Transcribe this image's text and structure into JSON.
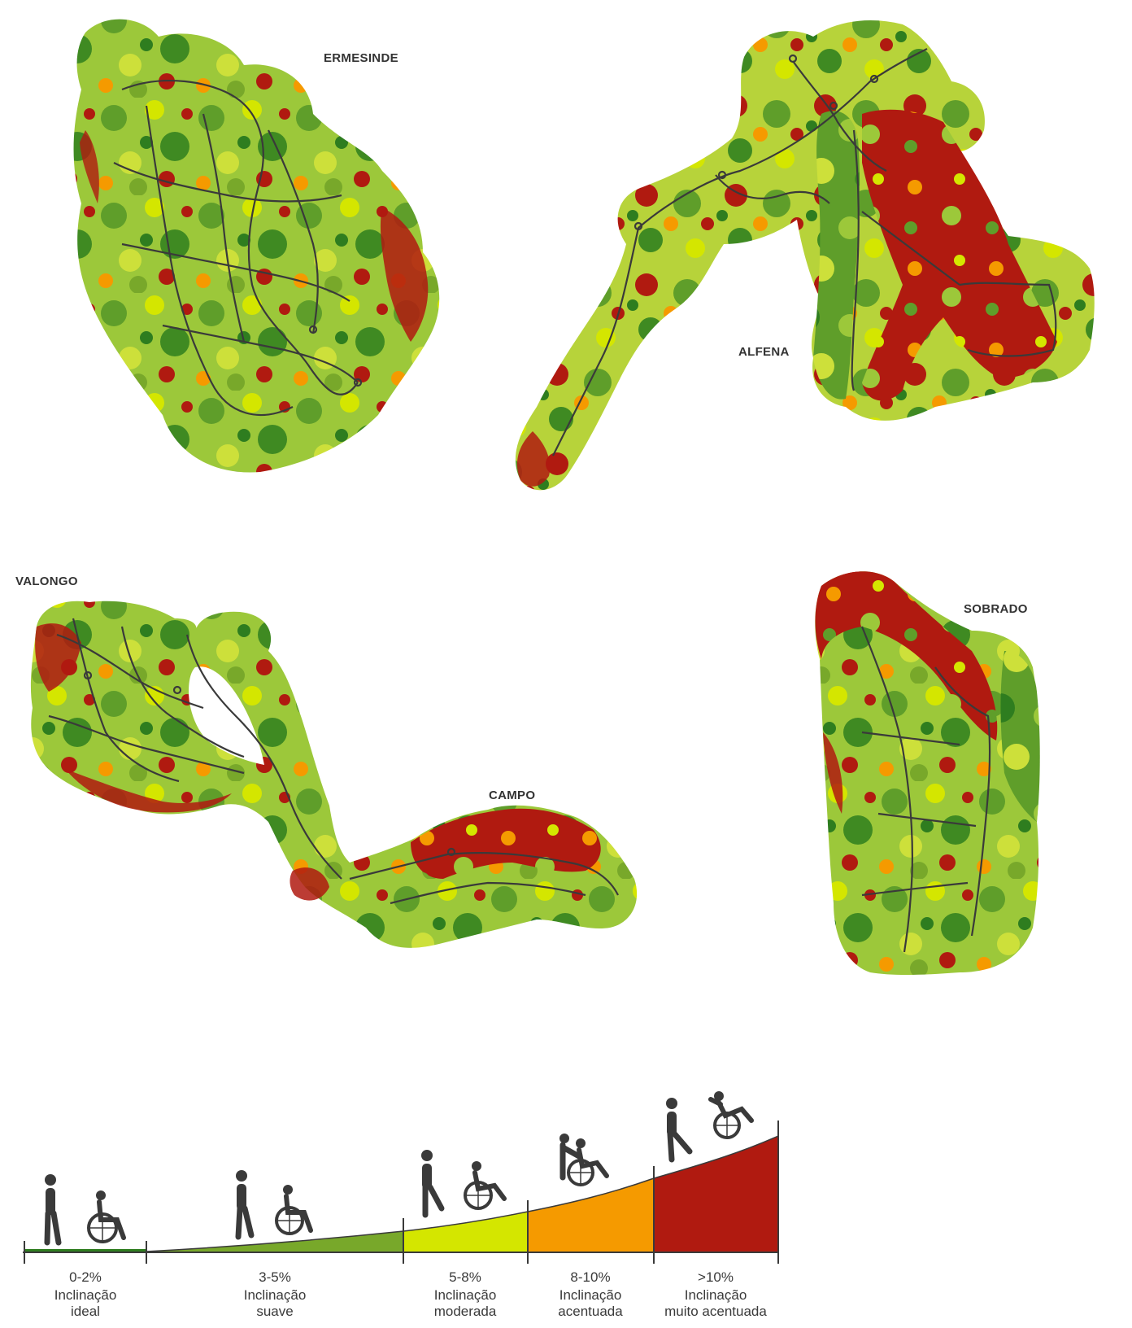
{
  "colors": {
    "ideal": "#2e7d1f",
    "suave": "#78a82a",
    "moderada": "#d4e600",
    "acentuada": "#f59a00",
    "muito_acentuada": "#b01a10",
    "route_line": "#3a3a3a"
  },
  "regions": {
    "ermesinde": "ERMESINDE",
    "alfena": "ALFENA",
    "valongo": "VALONGO",
    "campo": "CAMPO",
    "sobrado": "SOBRADO"
  },
  "legend": {
    "classes": [
      {
        "range": "0-2%",
        "line1": "Inclinação",
        "line2": "ideal",
        "icons": [
          "pedestrian-icon",
          "wheelchair-icon"
        ]
      },
      {
        "range": "3-5%",
        "line1": "Inclinação",
        "line2": "suave",
        "icons": [
          "pedestrian-icon",
          "wheelchair-icon"
        ]
      },
      {
        "range": "5-8%",
        "line1": "Inclinação",
        "line2": "moderada",
        "icons": [
          "pedestrian-icon",
          "wheelchair-icon"
        ]
      },
      {
        "range": "8-10%",
        "line1": "Inclinação",
        "line2": "acentuada",
        "icons": [
          "assisted-wheelchair-icon"
        ]
      },
      {
        "range": ">10%",
        "line1": "Inclinação",
        "line2": "muito acentuada",
        "icons": [
          "pedestrian-icon",
          "wheelchair-tipping-icon"
        ]
      }
    ]
  }
}
